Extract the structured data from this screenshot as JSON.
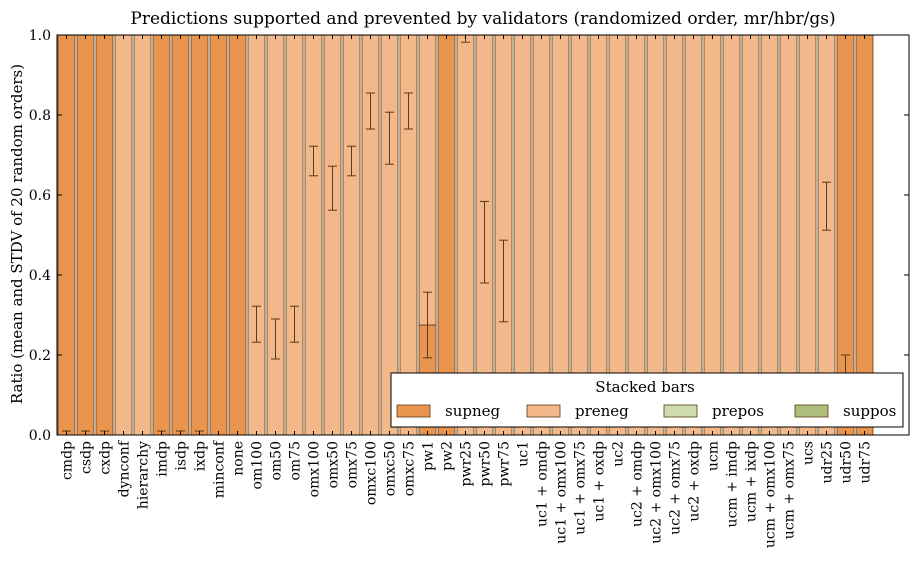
{
  "colors": {
    "supneg": "#e8954f",
    "preneg": "#f2b88a",
    "prepos": "#cfdcae",
    "suppos": "#aebf7d",
    "bar_edge": "#5a3a14",
    "error": "#5a3a14"
  },
  "chart_data": {
    "type": "bar",
    "stacked": true,
    "title": "Predictions supported and prevented by validators (randomized order, mr/hbr/gs)",
    "xlabel": "",
    "ylabel": "Ratio (mean and STDV of 20 random orders)",
    "ylim": [
      0,
      1
    ],
    "yticks": [
      "0.0",
      "0.2",
      "0.4",
      "0.6",
      "0.8",
      "1.0"
    ],
    "grid": false,
    "legend": {
      "title": "Stacked bars",
      "placement": "lower-right",
      "entries": [
        "supneg",
        "preneg",
        "prepos",
        "suppos"
      ]
    },
    "categories": [
      "cmdp",
      "csdp",
      "cxdp",
      "dynconf",
      "hierarchy",
      "imdp",
      "isdp",
      "ixdp",
      "minconf",
      "none",
      "om100",
      "om50",
      "om75",
      "omx100",
      "omx50",
      "omx75",
      "omxc100",
      "omxc50",
      "omxc75",
      "pw1",
      "pw2",
      "pwr25",
      "pwr50",
      "pwr75",
      "uc1",
      "uc1 + omdp",
      "uc1 + omx100",
      "uc1 + omx75",
      "uc1 + oxdp",
      "uc2",
      "uc2 + omdp",
      "uc2 + omx100",
      "uc2 + omx75",
      "uc2 + oxdp",
      "ucm",
      "ucm + imdp",
      "ucm + ixdp",
      "ucm + omx100",
      "ucm + omx75",
      "ucs",
      "udr25",
      "udr50",
      "udr75"
    ],
    "series": [
      {
        "name": "supneg",
        "values": [
          1,
          1,
          1,
          0,
          0,
          1,
          1,
          1,
          1,
          1,
          0,
          0,
          0,
          0,
          0,
          0,
          0,
          0,
          0,
          0.275,
          1,
          0,
          0,
          0,
          0,
          0,
          0,
          0,
          0,
          0,
          0,
          0,
          0,
          0,
          0,
          0,
          0,
          0,
          0,
          0,
          0,
          1,
          1
        ]
      },
      {
        "name": "preneg",
        "values": [
          0,
          0,
          0,
          1,
          1,
          0,
          0,
          0,
          0,
          0,
          1,
          1,
          1,
          1,
          1,
          1,
          1,
          1,
          1,
          0.725,
          0,
          1,
          1,
          1,
          1,
          1,
          1,
          1,
          1,
          1,
          1,
          1,
          1,
          1,
          1,
          1,
          1,
          1,
          1,
          1,
          1,
          0,
          0
        ]
      },
      {
        "name": "prepos",
        "values": [
          0,
          0,
          0,
          0,
          0,
          0,
          0,
          0,
          0,
          0,
          0,
          0,
          0,
          0,
          0,
          0,
          0,
          0,
          0,
          0,
          0,
          0,
          0,
          0,
          0,
          0,
          0,
          0,
          0,
          0,
          0,
          0,
          0,
          0,
          0,
          0,
          0,
          0,
          0,
          0,
          0,
          0,
          0
        ]
      },
      {
        "name": "suppos",
        "values": [
          0,
          0,
          0,
          0,
          0,
          0,
          0,
          0,
          0,
          0,
          0,
          0,
          0,
          0,
          0,
          0,
          0,
          0,
          0,
          0,
          0,
          0,
          0,
          0,
          0,
          0,
          0,
          0,
          0,
          0,
          0,
          0,
          0,
          0,
          0,
          0,
          0,
          0,
          0,
          0,
          0,
          0,
          0
        ]
      }
    ],
    "error_bars": [
      {
        "category": "cmdp",
        "mean": 0.0,
        "std": 0.01
      },
      {
        "category": "csdp",
        "mean": 0.0,
        "std": 0.01
      },
      {
        "category": "cxdp",
        "mean": 0.0,
        "std": 0.01
      },
      {
        "category": "imdp",
        "mean": 0.0,
        "std": 0.01
      },
      {
        "category": "isdp",
        "mean": 0.0,
        "std": 0.01
      },
      {
        "category": "ixdp",
        "mean": 0.0,
        "std": 0.01
      },
      {
        "category": "om100",
        "mean": 0.277,
        "std": 0.045
      },
      {
        "category": "om50",
        "mean": 0.24,
        "std": 0.05
      },
      {
        "category": "om75",
        "mean": 0.277,
        "std": 0.045
      },
      {
        "category": "omx100",
        "mean": 0.685,
        "std": 0.037
      },
      {
        "category": "omx50",
        "mean": 0.617,
        "std": 0.055
      },
      {
        "category": "omx75",
        "mean": 0.685,
        "std": 0.037
      },
      {
        "category": "omxc100",
        "mean": 0.81,
        "std": 0.045
      },
      {
        "category": "omxc50",
        "mean": 0.742,
        "std": 0.065
      },
      {
        "category": "omxc75",
        "mean": 0.81,
        "std": 0.045
      },
      {
        "category": "pw1",
        "mean": 0.275,
        "std": 0.082
      },
      {
        "category": "pwr25",
        "mean": 0.992,
        "std": 0.01
      },
      {
        "category": "pwr50",
        "mean": 0.482,
        "std": 0.102
      },
      {
        "category": "pwr75",
        "mean": 0.385,
        "std": 0.102
      },
      {
        "category": "udr25",
        "mean": 0.572,
        "std": 0.06
      },
      {
        "category": "udr50",
        "mean": 0.16,
        "std": 0.04
      }
    ]
  }
}
